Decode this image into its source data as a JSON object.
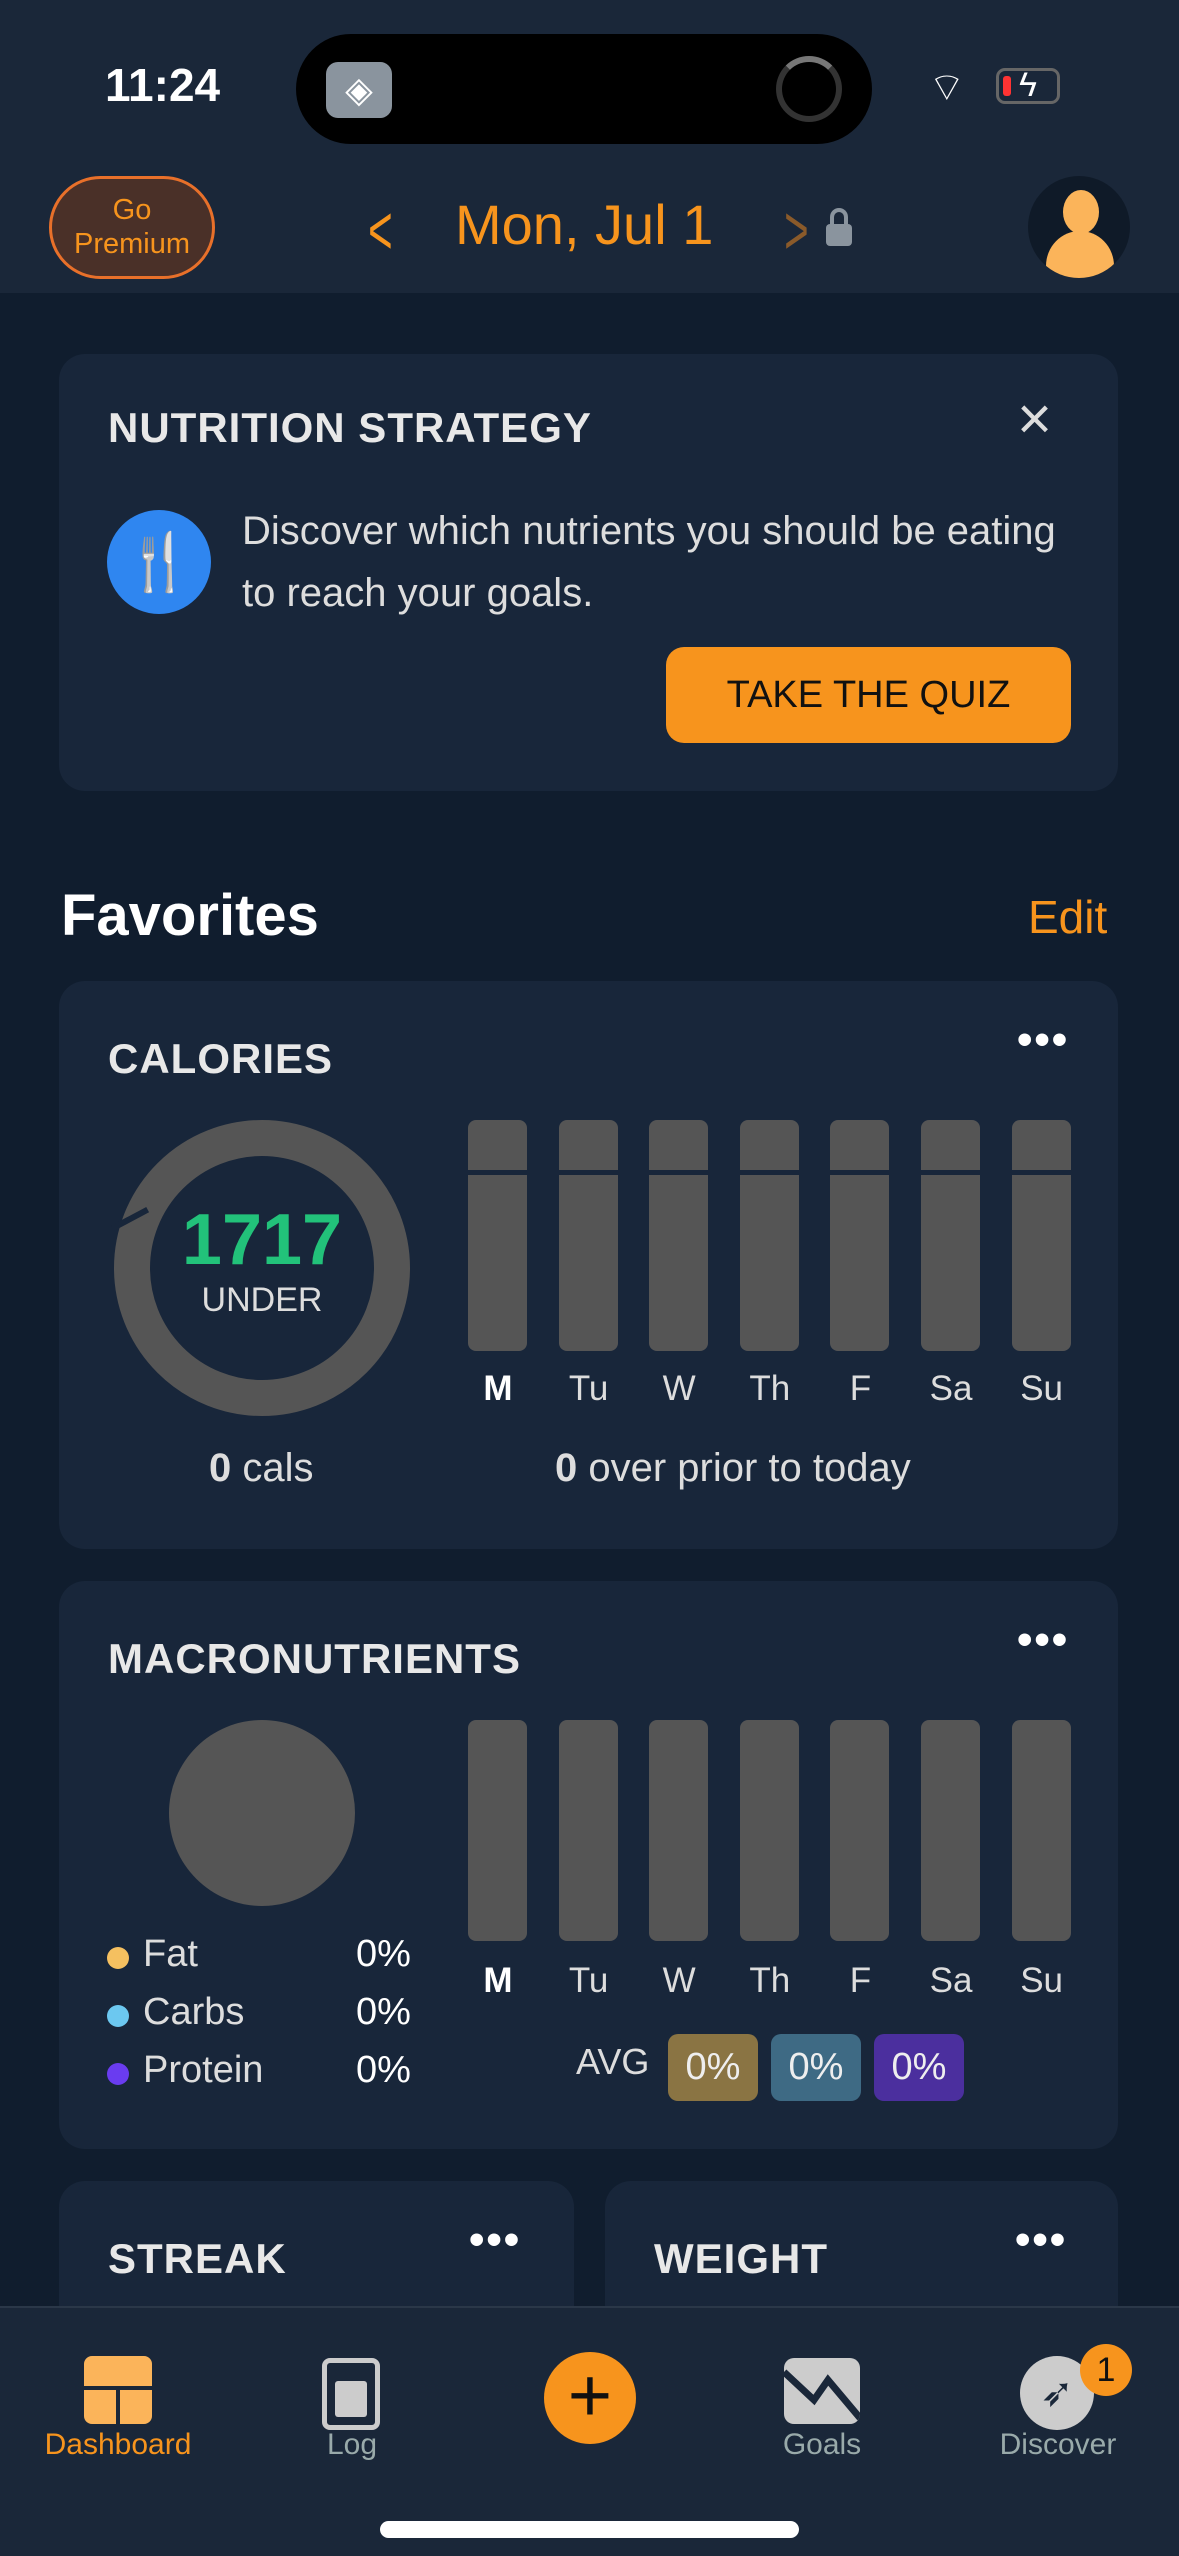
{
  "status_bar": {
    "time": "11:24"
  },
  "header": {
    "premium_label": "Go Premium",
    "date": "Mon, Jul 1"
  },
  "nutrition_card": {
    "title": "NUTRITION STRATEGY",
    "text": "Discover which nutrients you should be eating to reach your goals.",
    "cta": "TAKE THE QUIZ"
  },
  "favorites": {
    "title": "Favorites",
    "edit": "Edit"
  },
  "calories": {
    "title": "CALORIES",
    "remaining": "1717",
    "remaining_label": "UNDER",
    "cals_value": "0",
    "cals_unit": "cals",
    "over_value": "0",
    "over_text": "over prior to today",
    "days": [
      "M",
      "Tu",
      "W",
      "Th",
      "F",
      "Sa",
      "Su"
    ]
  },
  "macros": {
    "title": "MACRONUTRIENTS",
    "legend": [
      {
        "label": "Fat",
        "value": "0%",
        "color": "#f5c060"
      },
      {
        "label": "Carbs",
        "value": "0%",
        "color": "#6cc8f0"
      },
      {
        "label": "Protein",
        "value": "0%",
        "color": "#6a3cf0"
      }
    ],
    "days": [
      "M",
      "Tu",
      "W",
      "Th",
      "F",
      "Sa",
      "Su"
    ],
    "avg_label": "AVG",
    "avg": [
      {
        "value": "0%",
        "color": "#8a7443"
      },
      {
        "value": "0%",
        "color": "#3e6a84"
      },
      {
        "value": "0%",
        "color": "#4b2f9e"
      }
    ]
  },
  "streak": {
    "title": "STREAK"
  },
  "weight": {
    "title": "WEIGHT"
  },
  "tabs": [
    {
      "label": "Dashboard",
      "active": true
    },
    {
      "label": "Log"
    },
    {
      "label": ""
    },
    {
      "label": "Goals"
    },
    {
      "label": "Discover",
      "badge": "1"
    }
  ],
  "colors": {
    "accent": "#f7941d",
    "green": "#22c27a"
  }
}
